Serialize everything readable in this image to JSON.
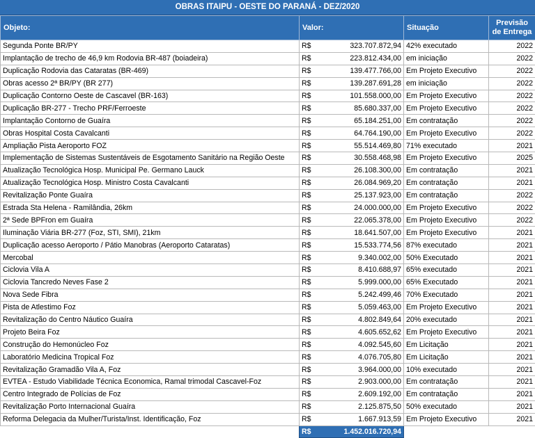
{
  "title": "OBRAS ITAIPU - OESTE DO PARANÁ - DEZ/2020",
  "headers": {
    "objeto": "Objeto:",
    "valor": "Valor:",
    "situacao": "Situação",
    "previsao_line1": "Previsão",
    "previsao_line2": "de Entrega"
  },
  "currency": "R$",
  "rows": [
    {
      "objeto": "Segunda Ponte BR/PY",
      "valor": "323.707.872,94",
      "situacao": "42% executado",
      "previsao": "2022"
    },
    {
      "objeto": "Implantação de trecho de 46,9 km Rodovia BR-487 (boiadeira)",
      "valor": "223.812.434,00",
      "situacao": "em iniciação",
      "previsao": "2022"
    },
    {
      "objeto": "Duplicação Rodovia das Cataratas (BR-469)",
      "valor": "139.477.766,00",
      "situacao": "Em Projeto Executivo",
      "previsao": "2022"
    },
    {
      "objeto": "Obras acesso 2ª BR/PY (BR 277)",
      "valor": "139.287.691,28",
      "situacao": "em iniciação",
      "previsao": "2022"
    },
    {
      "objeto": "Duplicação Contorno Oeste de Cascavel (BR-163)",
      "valor": "101.558.000,00",
      "situacao": "Em Projeto Executivo",
      "previsao": "2022"
    },
    {
      "objeto": "Duplicação BR-277 - Trecho PRF/Ferroeste",
      "valor": "85.680.337,00",
      "situacao": "Em Projeto Executivo",
      "previsao": "2022"
    },
    {
      "objeto": "Implantação Contorno de Guaíra",
      "valor": "65.184.251,00",
      "situacao": "Em contratação",
      "previsao": "2022"
    },
    {
      "objeto": "Obras Hospital Costa Cavalcanti",
      "valor": "64.764.190,00",
      "situacao": "Em Projeto Executivo",
      "previsao": "2022"
    },
    {
      "objeto": "Ampliação Pista Aeroporto FOZ",
      "valor": "55.514.469,80",
      "situacao": "71% executado",
      "previsao": "2021"
    },
    {
      "objeto": "Implementação de Sistemas Sustentáveis de Esgotamento Sanitário na Região Oeste",
      "valor": "30.558.468,98",
      "situacao": "Em Projeto Executivo",
      "previsao": "2025"
    },
    {
      "objeto": "Atualização Tecnológica Hosp. Municipal Pe. Germano Lauck",
      "valor": "26.108.300,00",
      "situacao": "Em contratação",
      "previsao": "2021"
    },
    {
      "objeto": "Atualização Tecnológica Hosp. Ministro Costa Cavalcanti",
      "valor": "26.084.969,20",
      "situacao": "Em contratação",
      "previsao": "2021"
    },
    {
      "objeto": "Revitalização Ponte Guaíra",
      "valor": "25.137.923,00",
      "situacao": "Em contratação",
      "previsao": "2022"
    },
    {
      "objeto": "Estrada Sta Helena - Ramilândia, 26km",
      "valor": "24.000.000,00",
      "situacao": "Em Projeto Executivo",
      "previsao": "2022"
    },
    {
      "objeto": "2ª Sede BPFron em Guaíra",
      "valor": "22.065.378,00",
      "situacao": "Em Projeto Executivo",
      "previsao": "2022"
    },
    {
      "objeto": "Iluminação Viária BR-277 (Foz, STI, SMI), 21km",
      "valor": "18.641.507,00",
      "situacao": "Em Projeto Executivo",
      "previsao": "2021"
    },
    {
      "objeto": "Duplicação acesso Aeroporto / Pátio Manobras (Aeroporto Cataratas)",
      "valor": "15.533.774,56",
      "situacao": "87% executado",
      "previsao": "2021"
    },
    {
      "objeto": "Mercobal",
      "valor": "9.340.002,00",
      "situacao": "50% Executado",
      "previsao": "2021"
    },
    {
      "objeto": "Ciclovia Vila A",
      "valor": "8.410.688,97",
      "situacao": "65% executado",
      "previsao": "2021"
    },
    {
      "objeto": "Ciclovia Tancredo Neves Fase 2",
      "valor": "5.999.000,00",
      "situacao": "65% Executado",
      "previsao": "2021"
    },
    {
      "objeto": "Nova Sede Fibra",
      "valor": "5.242.499,46",
      "situacao": "70% Executado",
      "previsao": "2021"
    },
    {
      "objeto": "Pista de Atlestimo Foz",
      "valor": "5.059.463,00",
      "situacao": "Em Projeto Executivo",
      "previsao": "2021"
    },
    {
      "objeto": "Revitalização do Centro Náutico Guaíra",
      "valor": "4.802.849,64",
      "situacao": "20% executado",
      "previsao": "2021"
    },
    {
      "objeto": "Projeto Beira Foz",
      "valor": "4.605.652,62",
      "situacao": "Em Projeto Executivo",
      "previsao": "2021"
    },
    {
      "objeto": "Construção do Hemonúcleo Foz",
      "valor": "4.092.545,60",
      "situacao": "Em Licitação",
      "previsao": "2021"
    },
    {
      "objeto": "Laboratório Medicina Tropical Foz",
      "valor": "4.076.705,80",
      "situacao": "Em Licitação",
      "previsao": "2021"
    },
    {
      "objeto": "Revitalização Gramadão Vila A, Foz",
      "valor": "3.964.000,00",
      "situacao": "10% executado",
      "previsao": "2021"
    },
    {
      "objeto": "EVTEA - Estudo Viabilidade Técnica Economica, Ramal trimodal Cascavel-Foz",
      "valor": "2.903.000,00",
      "situacao": "Em contratação",
      "previsao": "2021"
    },
    {
      "objeto": "Centro Integrado de Polícias de Foz",
      "valor": "2.609.192,00",
      "situacao": "Em contratação",
      "previsao": "2021"
    },
    {
      "objeto": "Revitalização Porto Internacional Guaíra",
      "valor": "2.125.875,50",
      "situacao": "50% executado",
      "previsao": "2021"
    },
    {
      "objeto": "Reforma Delegacia da Mulher/Turista/Inst. Identificação, Foz",
      "valor": "1.667.913,59",
      "situacao": "Em Projeto Executivo",
      "previsao": "2021"
    }
  ],
  "total": {
    "currency": "R$",
    "valor": "1.452.016.720,94"
  },
  "colors": {
    "header_bg": "#2f6fb4",
    "header_text": "#ffffff",
    "grid": "#b9b9b9"
  }
}
